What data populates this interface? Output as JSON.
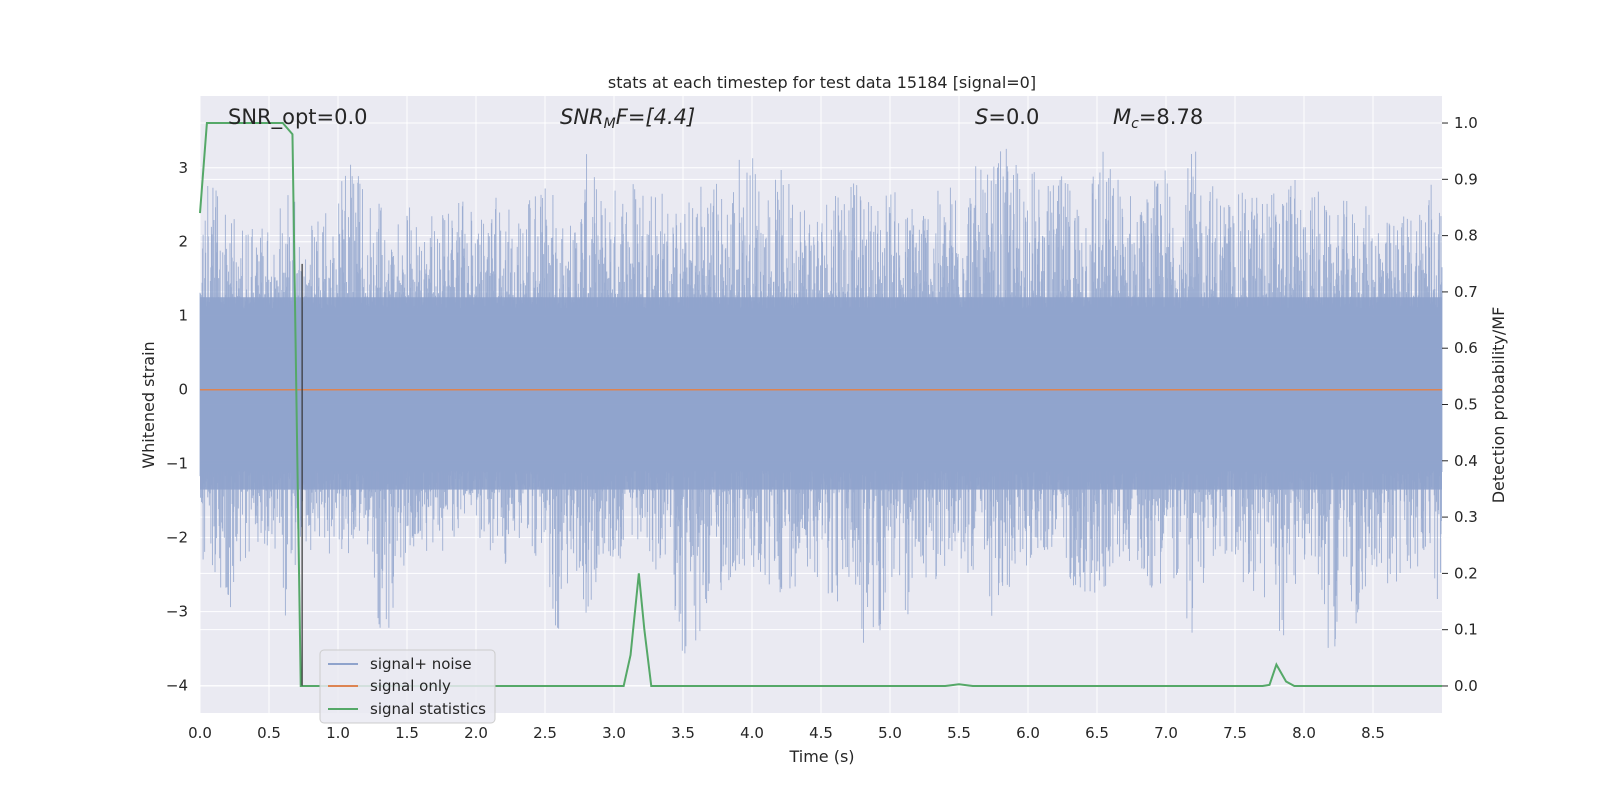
{
  "chart_data": {
    "type": "line",
    "title": "stats at each timestep for test data 15184 [signal=0]",
    "xlabel": "Time (s)",
    "ylabel_left": "Whitened strain",
    "ylabel_right": "Detection probability/MF",
    "xlim": [
      0.0,
      9.0
    ],
    "ylim_left": [
      -4.37,
      3.97
    ],
    "ylim_right": [
      -0.048,
      1.048
    ],
    "grid": true,
    "legend_position": "lower-left",
    "xticks": [
      "0.0",
      "0.5",
      "1.0",
      "1.5",
      "2.0",
      "2.5",
      "3.0",
      "3.5",
      "4.0",
      "4.5",
      "5.0",
      "5.5",
      "6.0",
      "6.5",
      "7.0",
      "7.5",
      "8.0",
      "8.5"
    ],
    "xtick_values": [
      0.0,
      0.5,
      1.0,
      1.5,
      2.0,
      2.5,
      3.0,
      3.5,
      4.0,
      4.5,
      5.0,
      5.5,
      6.0,
      6.5,
      7.0,
      7.5,
      8.0,
      8.5
    ],
    "yticks_left": [
      "−4",
      "−3",
      "−2",
      "−1",
      "0",
      "1",
      "2",
      "3"
    ],
    "ytick_values_left": [
      -4,
      -3,
      -2,
      -1,
      0,
      1,
      2,
      3
    ],
    "yticks_right": [
      "0.0",
      "0.1",
      "0.2",
      "0.3",
      "0.4",
      "0.5",
      "0.6",
      "0.7",
      "0.8",
      "0.9",
      "1.0"
    ],
    "ytick_values_right": [
      0.0,
      0.1,
      0.2,
      0.3,
      0.4,
      0.5,
      0.6,
      0.7,
      0.8,
      0.9,
      1.0
    ],
    "annotations": {
      "snr_opt": "SNR_opt=0.0",
      "snr_mf_main": "SNR",
      "snr_mf_sub": "M",
      "snr_mf_rest": "F=[4.4]",
      "s_var": "S",
      "s_rest": "=0.0",
      "mc_var": "M",
      "mc_sub": "c",
      "mc_rest": "=8.78"
    },
    "series": [
      {
        "name": "signal+ noise",
        "axis": "left",
        "color": "#8fa3cc",
        "envelope_x": [
          0.0,
          0.1,
          0.2,
          0.3,
          0.4,
          0.5,
          0.6,
          0.7,
          0.75,
          0.8,
          0.9,
          1.0,
          1.1,
          1.2,
          1.3,
          1.4,
          1.5,
          1.6,
          1.7,
          1.8,
          1.9,
          2.0,
          2.1,
          2.2,
          2.3,
          2.4,
          2.5,
          2.6,
          2.7,
          2.8,
          2.9,
          3.0,
          3.1,
          3.2,
          3.3,
          3.4,
          3.5,
          3.6,
          3.7,
          3.8,
          3.9,
          4.0,
          4.1,
          4.2,
          4.3,
          4.4,
          4.5,
          4.6,
          4.7,
          4.8,
          4.9,
          5.0,
          5.1,
          5.2,
          5.3,
          5.4,
          5.5,
          5.6,
          5.7,
          5.8,
          5.9,
          6.0,
          6.1,
          6.2,
          6.3,
          6.4,
          6.5,
          6.6,
          6.7,
          6.8,
          6.9,
          7.0,
          7.1,
          7.2,
          7.3,
          7.4,
          7.5,
          7.6,
          7.7,
          7.8,
          7.9,
          8.0,
          8.1,
          8.2,
          8.3,
          8.4,
          8.5,
          8.6,
          8.7,
          8.8,
          8.9,
          9.0
        ],
        "envelope_max": [
          2.0,
          3.5,
          2.2,
          2.5,
          2.4,
          2.3,
          2.7,
          2.6,
          1.7,
          2.2,
          2.5,
          2.9,
          3.3,
          2.8,
          2.6,
          2.2,
          2.7,
          2.3,
          2.5,
          2.4,
          2.6,
          2.5,
          2.7,
          2.5,
          2.4,
          2.8,
          2.9,
          2.6,
          2.3,
          3.2,
          2.7,
          2.8,
          3.0,
          3.1,
          3.0,
          2.6,
          2.4,
          2.9,
          3.1,
          2.7,
          3.3,
          3.3,
          2.7,
          3.0,
          2.9,
          2.7,
          2.5,
          3.2,
          2.9,
          2.7,
          2.6,
          2.9,
          2.4,
          2.8,
          2.7,
          2.7,
          3.2,
          3.1,
          2.9,
          3.3,
          3.2,
          3.3,
          2.7,
          2.9,
          2.9,
          2.8,
          3.5,
          3.1,
          2.9,
          2.6,
          2.8,
          3.1,
          2.8,
          3.3,
          2.9,
          2.8,
          2.6,
          2.8,
          2.7,
          2.8,
          3.0,
          2.6,
          2.8,
          2.3,
          2.6,
          2.4,
          2.6,
          2.3,
          2.4,
          2.5,
          3.1,
          2.6
        ],
        "envelope_min": [
          -2.5,
          -2.5,
          -3.2,
          -2.4,
          -2.6,
          -2.3,
          -3.2,
          -2.6,
          -2.1,
          -2.4,
          -2.2,
          -2.3,
          -2.2,
          -2.0,
          -3.4,
          -3.3,
          -2.2,
          -2.1,
          -2.3,
          -2.1,
          -2.2,
          -2.0,
          -2.2,
          -2.4,
          -2.1,
          -2.2,
          -2.5,
          -3.4,
          -2.4,
          -3.6,
          -2.2,
          -2.5,
          -2.2,
          -2.3,
          -2.5,
          -2.4,
          -3.8,
          -3.9,
          -2.9,
          -2.8,
          -2.5,
          -2.6,
          -2.9,
          -2.8,
          -2.7,
          -2.4,
          -2.6,
          -3.0,
          -2.7,
          -3.6,
          -3.7,
          -2.6,
          -3.4,
          -2.5,
          -2.7,
          -2.4,
          -2.6,
          -2.5,
          -2.9,
          -3.5,
          -2.5,
          -2.4,
          -2.2,
          -2.3,
          -2.6,
          -2.8,
          -3.1,
          -2.5,
          -2.3,
          -2.4,
          -2.8,
          -2.5,
          -2.7,
          -3.7,
          -2.3,
          -2.3,
          -2.5,
          -2.8,
          -2.9,
          -3.7,
          -3.0,
          -2.4,
          -2.6,
          -3.8,
          -2.5,
          -3.6,
          -2.3,
          -2.9,
          -2.7,
          -2.4,
          -3.0,
          -2.9
        ]
      },
      {
        "name": "signal only",
        "axis": "left",
        "color": "#dd8452",
        "x": [
          0.0,
          9.0
        ],
        "y": [
          0.0,
          0.0
        ]
      },
      {
        "name": "signal statistics",
        "axis": "right",
        "color": "#55a868",
        "x": [
          0.0,
          0.05,
          0.1,
          0.15,
          0.2,
          0.3,
          0.4,
          0.5,
          0.6,
          0.67,
          0.73,
          0.8,
          0.9,
          1.0,
          1.5,
          2.0,
          2.5,
          3.0,
          3.07,
          3.12,
          3.18,
          3.22,
          3.27,
          3.35,
          4.0,
          4.5,
          5.0,
          5.4,
          5.5,
          5.6,
          6.0,
          6.5,
          7.0,
          7.5,
          7.7,
          7.75,
          7.8,
          7.87,
          7.93,
          8.0,
          8.5,
          9.0
        ],
        "y": [
          0.84,
          1.0,
          1.0,
          1.0,
          1.0,
          1.0,
          1.0,
          1.0,
          1.0,
          0.98,
          0.0,
          0.0,
          0.0,
          0.0,
          0.0,
          0.0,
          0.0,
          0.0,
          0.0,
          0.055,
          0.2,
          0.1,
          0.0,
          0.0,
          0.0,
          0.0,
          0.0,
          0.0,
          0.003,
          0.0,
          0.0,
          0.0,
          0.0,
          0.0,
          0.0,
          0.002,
          0.038,
          0.008,
          0.0,
          0.0,
          0.0,
          0.0
        ]
      }
    ]
  }
}
